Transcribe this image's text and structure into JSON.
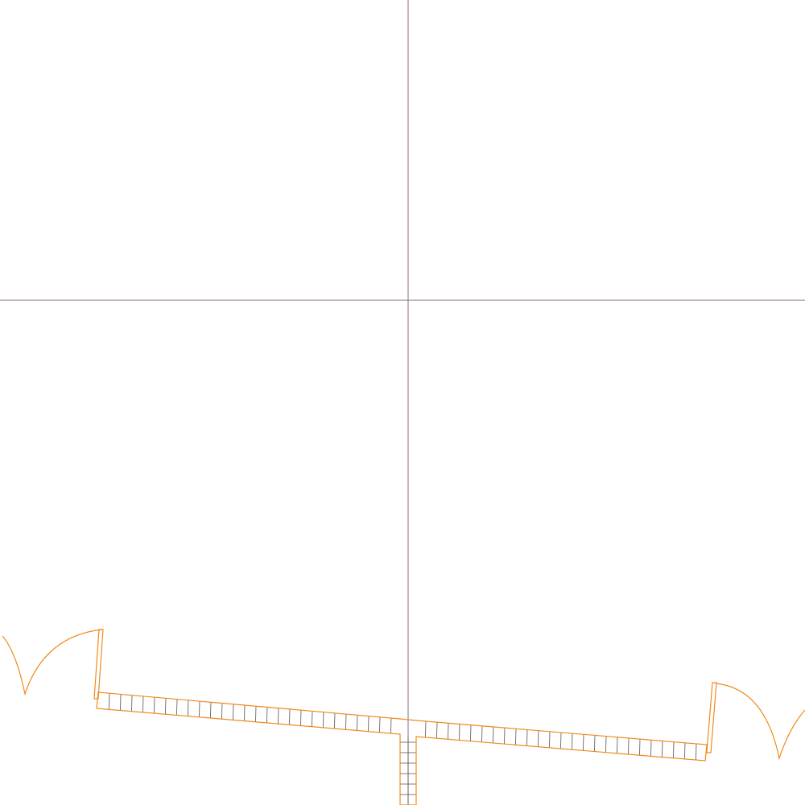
{
  "drawing": {
    "view": "floor-plan-sketch",
    "colors": {
      "background": "#ffffff",
      "guide_line": "#8a6a7e",
      "wall_outline": "#f08a1c",
      "wall_hatch": "#555555"
    },
    "guides": {
      "vertical": "crosshair-vertical-guide",
      "horizontal": "crosshair-horizontal-guide"
    },
    "walls": [
      "left-wall-segment",
      "right-wall-segment",
      "stem-wall-segment"
    ],
    "doors": [
      {
        "name": "left-door",
        "swing": "outward-left"
      },
      {
        "name": "right-door",
        "swing": "outward-right"
      }
    ]
  }
}
